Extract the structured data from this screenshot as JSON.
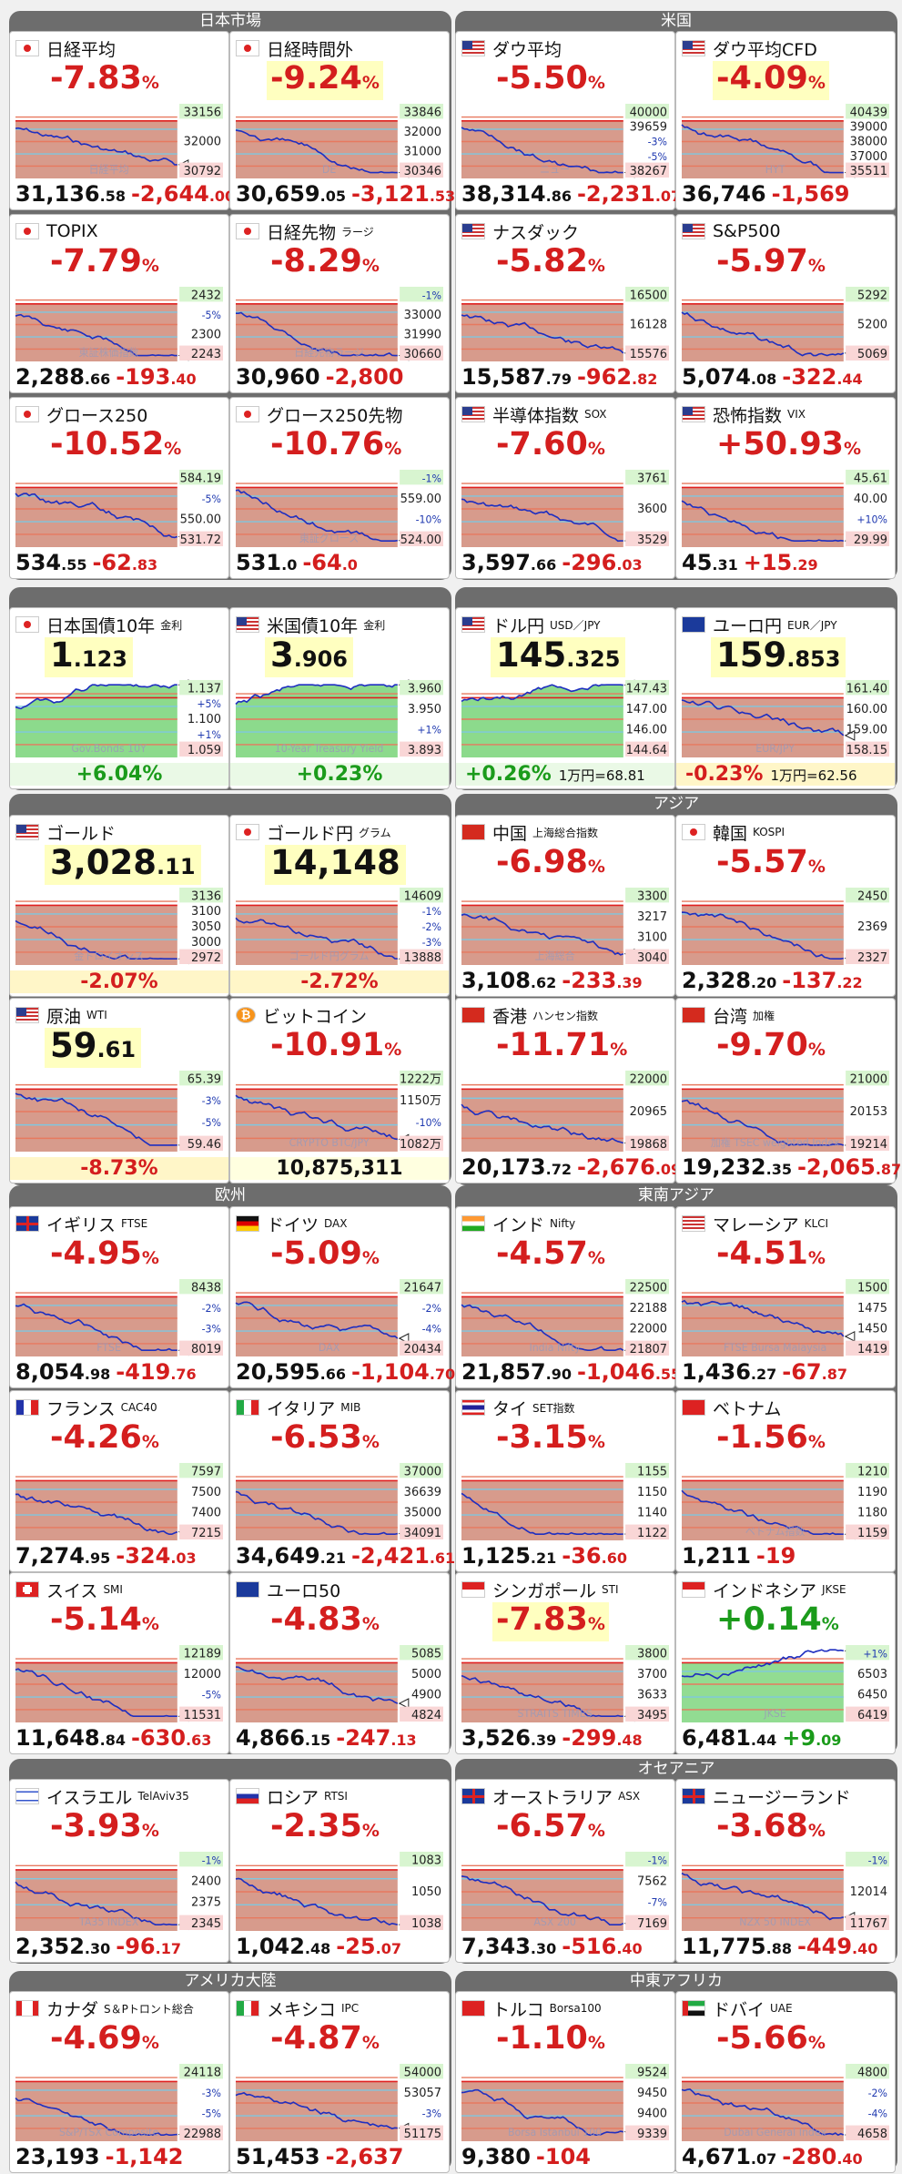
{
  "colors": {
    "down": "#d41e1e",
    "up": "#1b9b1b",
    "section": "#6d6d6d",
    "highlight": "#ffffc0"
  },
  "sections": {
    "nikkei": "日本市場",
    "us": "米国",
    "asia": "アジア",
    "europe": "欧州",
    "sea": "東南アジア",
    "oceania": "オセアニア",
    "americas": "アメリカ大陸",
    "mideast": "中東アフリカ"
  },
  "tiles": [
    {
      "name": "日経平均",
      "flag": "jp",
      "pct": "-7.83",
      "dir": "dn",
      "last": "31,136",
      "lastdec": ".58",
      "chg": "-2,644",
      "chgdec": ".00",
      "ticks": [
        "33156",
        "32000",
        "30792"
      ],
      "wm": "日経平均"
    },
    {
      "name": "日経時間外",
      "flag": "jp",
      "pct": "-9.24",
      "dir": "dn",
      "last": "30,659",
      "lastdec": ".05",
      "chg": "-3,121",
      "chgdec": ".53",
      "ticks": [
        "33846",
        "32000",
        "31000",
        "30346"
      ],
      "wm": "DE"
    },
    {
      "name": "ダウ平均",
      "flag": "us",
      "pct": "-5.50",
      "dir": "dn",
      "last": "38,314",
      "lastdec": ".86",
      "chg": "-2,231",
      "chgdec": ".07",
      "ticks": [
        "40000",
        "39659",
        "-3%",
        "-5%",
        "38267"
      ],
      "wm": "ニュー"
    },
    {
      "name": "ダウ平均CFD",
      "flag": "us",
      "pct": "-4.09",
      "dir": "dn",
      "last": "36,746",
      "lastdec": "",
      "chg": "-1,569",
      "chgdec": "",
      "ticks": [
        "40439",
        "39000",
        "38000",
        "37000",
        "35511"
      ],
      "wm": "HYT"
    },
    {
      "name": "TOPIX",
      "flag": "jp",
      "pct": "-7.79",
      "dir": "dn",
      "last": "2,288",
      "lastdec": ".66",
      "chg": "-193",
      "chgdec": ".40",
      "ticks": [
        "2432",
        "-5%",
        "2300",
        "2243"
      ],
      "wm": "東証株価指数"
    },
    {
      "name": "日経先物",
      "sub": "ラージ",
      "flag": "jp",
      "pct": "-8.29",
      "dir": "dn",
      "last": "30,960",
      "lastdec": "",
      "chg": "-2,800",
      "chgdec": "",
      "ticks": [
        "-1%",
        "33000",
        "31990",
        "30660"
      ],
      "wm": "日経先物ラージ"
    },
    {
      "name": "ナスダック",
      "flag": "us",
      "pct": "-5.82",
      "dir": "dn",
      "last": "15,587",
      "lastdec": ".79",
      "chg": "-962",
      "chgdec": ".82",
      "ticks": [
        "16500",
        "16128",
        "15576"
      ],
      "wm": ""
    },
    {
      "name": "S&P500",
      "flag": "us",
      "pct": "-5.97",
      "dir": "dn",
      "last": "5,074",
      "lastdec": ".08",
      "chg": "-322",
      "chgdec": ".44",
      "ticks": [
        "5292",
        "5200",
        "5069"
      ],
      "wm": ""
    },
    {
      "name": "グロース250",
      "flag": "jp",
      "pct": "-10.52",
      "dir": "dn",
      "last": "534",
      "lastdec": ".55",
      "chg": "-62",
      "chgdec": ".83",
      "ticks": [
        "584.19",
        "-5%",
        "550.00",
        "531.72"
      ],
      "wm": ""
    },
    {
      "name": "グロース250先物",
      "flag": "jp",
      "pct": "-10.76",
      "dir": "dn",
      "last": "531",
      "lastdec": ".0",
      "chg": "-64",
      "chgdec": ".0",
      "ticks": [
        "-1%",
        "559.00",
        "-10%",
        "524.00"
      ],
      "wm": "東証グロース"
    },
    {
      "name": "半導体指数",
      "sub": "SOX",
      "flag": "us",
      "pct": "-7.60",
      "dir": "dn",
      "last": "3,597",
      "lastdec": ".66",
      "chg": "-296",
      "chgdec": ".03",
      "ticks": [
        "3761",
        "3600",
        "3529"
      ],
      "wm": ""
    },
    {
      "name": "恐怖指数",
      "sub": "VIX",
      "flag": "us",
      "pct": "+50.93",
      "dir": "dn",
      "last": "45",
      "lastdec": ".31",
      "chg": "+15",
      "chgdec": ".29",
      "ticks": [
        "45.61",
        "40.00",
        "+10%",
        "29.99"
      ],
      "wm": ""
    },
    {
      "name": "日本国債10年",
      "sub": "金利",
      "flag": "jp",
      "priceI": "1",
      "priceD": ".123",
      "dir": "up",
      "foot": "+6.04%",
      "ticks": [
        "1.137",
        "+5%",
        "1.100",
        "+1%",
        "1.059"
      ],
      "wm": "Gov.Bonds 10Y"
    },
    {
      "name": "米国債10年",
      "sub": "金利",
      "flag": "us",
      "priceI": "3",
      "priceD": ".906",
      "dir": "up",
      "foot": "+0.23%",
      "ticks": [
        "3.960",
        "3.950",
        "+1%",
        "3.893"
      ],
      "wm": "10-Year Treasury Yield"
    },
    {
      "name": "ドル円",
      "sub": "USD／JPY",
      "flag": "us",
      "priceI": "145",
      "priceD": ".325",
      "dir": "up",
      "foot": "+0.26%",
      "foot2": "1万円=68.81",
      "ticks": [
        "147.43",
        "147.00",
        "146.00",
        "144.64"
      ],
      "wm": ""
    },
    {
      "name": "ユーロ円",
      "sub": "EUR／JPY",
      "flag": "eu",
      "priceI": "159",
      "priceD": ".853",
      "dir": "dn",
      "foot": "-0.23%",
      "foot2": "1万円=62.56",
      "ticks": [
        "161.40",
        "160.00",
        "159.00",
        "158.15"
      ],
      "wm": "EUR/JPY"
    },
    {
      "name": "ゴールド",
      "flag": "us",
      "priceI": "3,028",
      "priceD": ".11",
      "dir": "dn",
      "foot": "-2.07%",
      "ticks": [
        "3136",
        "3100",
        "3050",
        "3000",
        "2972"
      ],
      "wm": "金トロイオンス"
    },
    {
      "name": "ゴールド円",
      "sub": "グラム",
      "flag": "jp",
      "priceI": "14,148",
      "priceD": "",
      "dir": "dn",
      "foot": "-2.72%",
      "ticks": [
        "14609",
        "-1%",
        "-2%",
        "-3%",
        "13888"
      ],
      "wm": "ゴールド円グラム"
    },
    {
      "name": "中国",
      "sub": "上海総合指数",
      "flag": "cn",
      "pct": "-6.98",
      "dir": "dn",
      "last": "3,108",
      "lastdec": ".62",
      "chg": "-233",
      "chgdec": ".39",
      "ticks": [
        "3300",
        "3217",
        "3100",
        "3040"
      ],
      "wm": "上海総合"
    },
    {
      "name": "韓国",
      "sub": "KOSPI",
      "flag": "kr",
      "pct": "-5.57",
      "dir": "dn",
      "last": "2,328",
      "lastdec": ".20",
      "chg": "-137",
      "chgdec": ".22",
      "ticks": [
        "2450",
        "2369",
        "2327"
      ],
      "wm": ""
    },
    {
      "name": "原油",
      "sub": "WTI",
      "flag": "us",
      "priceI": "59",
      "priceD": ".61",
      "dir": "dn",
      "foot": "-8.73%",
      "ticks": [
        "65.39",
        "-3%",
        "-5%",
        "59.46"
      ],
      "wm": ""
    },
    {
      "name": "ビットコイン",
      "flag": "btc",
      "pct": "-10.91",
      "dir": "dn",
      "footbig": "10,875,311",
      "ticks": [
        "1222万",
        "1150万",
        "-10%",
        "1082万"
      ],
      "wm": "CRYPTO BTC/JPY"
    },
    {
      "name": "香港",
      "sub": "ハンセン指数",
      "flag": "hk",
      "pct": "-11.71",
      "dir": "dn",
      "last": "20,173",
      "lastdec": ".72",
      "chg": "-2,676",
      "chgdec": ".09",
      "ticks": [
        "22000",
        "20965",
        "19868"
      ],
      "wm": ""
    },
    {
      "name": "台湾",
      "sub": "加権",
      "flag": "tw",
      "pct": "-9.70",
      "dir": "dn",
      "last": "19,232",
      "lastdec": ".35",
      "chg": "-2,065",
      "chgdec": ".87",
      "ticks": [
        "21000",
        "20153",
        "19214"
      ],
      "wm": "加権 TSEC weighted Index"
    },
    {
      "name": "イギリス",
      "sub": "FTSE",
      "flag": "gb",
      "pct": "-4.95",
      "dir": "dn",
      "last": "8,054",
      "lastdec": ".98",
      "chg": "-419",
      "chgdec": ".76",
      "ticks": [
        "8438",
        "-2%",
        "-3%",
        "8019"
      ],
      "wm": "FTSE"
    },
    {
      "name": "ドイツ",
      "sub": "DAX",
      "flag": "de",
      "pct": "-5.09",
      "dir": "dn",
      "last": "20,595",
      "lastdec": ".66",
      "chg": "-1,104",
      "chgdec": ".70",
      "ticks": [
        "21647",
        "-2%",
        "-4%",
        "20434"
      ],
      "wm": "DAX"
    },
    {
      "name": "インド",
      "sub": "Nifty",
      "flag": "in",
      "pct": "-4.57",
      "dir": "dn",
      "last": "21,857",
      "lastdec": ".90",
      "chg": "-1,046",
      "chgdec": ".55",
      "ticks": [
        "22500",
        "22188",
        "22000",
        "21807"
      ],
      "wm": "India Nifty"
    },
    {
      "name": "マレーシア",
      "sub": "KLCI",
      "flag": "my",
      "pct": "-4.51",
      "dir": "dn",
      "last": "1,436",
      "lastdec": ".27",
      "chg": "-67",
      "chgdec": ".87",
      "ticks": [
        "1500",
        "1475",
        "1450",
        "1419"
      ],
      "wm": "FTSE Bursa Malaysia"
    },
    {
      "name": "フランス",
      "sub": "CAC40",
      "flag": "fr",
      "pct": "-4.26",
      "dir": "dn",
      "last": "7,274",
      "lastdec": ".95",
      "chg": "-324",
      "chgdec": ".03",
      "ticks": [
        "7597",
        "7500",
        "7400",
        "7215"
      ],
      "wm": ""
    },
    {
      "name": "イタリア",
      "sub": "MIB",
      "flag": "it",
      "pct": "-6.53",
      "dir": "dn",
      "last": "34,649",
      "lastdec": ".21",
      "chg": "-2,421",
      "chgdec": ".61",
      "ticks": [
        "37000",
        "36639",
        "35000",
        "34091"
      ],
      "wm": ""
    },
    {
      "name": "タイ",
      "sub": "SET指数",
      "flag": "th",
      "pct": "-3.15",
      "dir": "dn",
      "last": "1,125",
      "lastdec": ".21",
      "chg": "-36",
      "chgdec": ".60",
      "ticks": [
        "1155",
        "1150",
        "1140",
        "1122"
      ],
      "wm": ""
    },
    {
      "name": "ベトナム",
      "flag": "vn",
      "pct": "-1.56",
      "dir": "dn",
      "last": "1,211",
      "lastdec": "",
      "chg": "-19",
      "chgdec": "",
      "ticks": [
        "1210",
        "1190",
        "1180",
        "1159"
      ],
      "wm": "ベトナム指数"
    },
    {
      "name": "スイス",
      "sub": "SMI",
      "flag": "ch",
      "pct": "-5.14",
      "dir": "dn",
      "last": "11,648",
      "lastdec": ".84",
      "chg": "-630",
      "chgdec": ".63",
      "ticks": [
        "12189",
        "12000",
        "-5%",
        "11531"
      ],
      "wm": ""
    },
    {
      "name": "ユーロ50",
      "flag": "eu",
      "pct": "-4.83",
      "dir": "dn",
      "last": "4,866",
      "lastdec": ".15",
      "chg": "-247",
      "chgdec": ".13",
      "ticks": [
        "5085",
        "5000",
        "4900",
        "4824"
      ],
      "wm": ""
    },
    {
      "name": "シンガポール",
      "sub": "STI",
      "flag": "sg",
      "pct": "-7.83",
      "dir": "dn",
      "last": "3,526",
      "lastdec": ".39",
      "chg": "-299",
      "chgdec": ".48",
      "ticks": [
        "3800",
        "3700",
        "3633",
        "3495"
      ],
      "wm": "STRAITS TIMES"
    },
    {
      "name": "インドネシア",
      "sub": "JKSE",
      "flag": "id",
      "pct": "+0.14",
      "dir": "up",
      "last": "6,481",
      "lastdec": ".44",
      "chg": "+9",
      "chgdec": ".09",
      "ticks": [
        "+1%",
        "6503",
        "6450",
        "6419"
      ],
      "wm": "JKSE"
    },
    {
      "name": "イスラエル",
      "sub": "TelAviv35",
      "flag": "il",
      "pct": "-3.93",
      "dir": "dn",
      "last": "2,352",
      "lastdec": ".30",
      "chg": "-96",
      "chgdec": ".17",
      "ticks": [
        "-1%",
        "2400",
        "2375",
        "2345"
      ],
      "wm": "TA35 INDEX"
    },
    {
      "name": "ロシア",
      "sub": "RTSI",
      "flag": "ru",
      "pct": "-2.35",
      "dir": "dn",
      "last": "1,042",
      "lastdec": ".48",
      "chg": "-25",
      "chgdec": ".07",
      "ticks": [
        "1083",
        "1050",
        "1038"
      ],
      "wm": ""
    },
    {
      "name": "オーストラリア",
      "sub": "ASX",
      "flag": "au",
      "pct": "-6.57",
      "dir": "dn",
      "last": "7,343",
      "lastdec": ".30",
      "chg": "-516",
      "chgdec": ".40",
      "ticks": [
        "-1%",
        "7562",
        "-7%",
        "7169"
      ],
      "wm": "ASX 200"
    },
    {
      "name": "ニュージーランド",
      "flag": "nz",
      "pct": "-3.68",
      "dir": "dn",
      "last": "11,775",
      "lastdec": ".88",
      "chg": "-449",
      "chgdec": ".40",
      "ticks": [
        "-1%",
        "12014",
        "11767"
      ],
      "wm": "NZX 50 INDEX"
    },
    {
      "name": "カナダ",
      "sub": "S＆Pトロント総合",
      "flag": "ca",
      "pct": "-4.69",
      "dir": "dn",
      "last": "23,193",
      "lastdec": "",
      "chg": "-1,142",
      "chgdec": "",
      "ticks": [
        "24118",
        "-3%",
        "-5%",
        "22988"
      ],
      "wm": "S&P/TSX Composite"
    },
    {
      "name": "メキシコ",
      "sub": "IPC",
      "flag": "mx",
      "pct": "-4.87",
      "dir": "dn",
      "last": "51,453",
      "lastdec": "",
      "chg": "-2,637",
      "chgdec": "",
      "ticks": [
        "54000",
        "53057",
        "-3%",
        "51175"
      ],
      "wm": ""
    },
    {
      "name": "トルコ",
      "sub": "Borsa100",
      "flag": "tr",
      "pct": "-1.10",
      "dir": "dn",
      "last": "9,380",
      "lastdec": "",
      "chg": "-104",
      "chgdec": "",
      "ticks": [
        "9524",
        "9450",
        "9400",
        "9339"
      ],
      "wm": "Borsa Istanbul 100"
    },
    {
      "name": "ドバイ",
      "sub": "UAE",
      "flag": "ae",
      "pct": "-5.66",
      "dir": "dn",
      "last": "4,671",
      "lastdec": ".07",
      "chg": "-280",
      "chgdec": ".40",
      "ticks": [
        "4800",
        "-2%",
        "-4%",
        "4658"
      ],
      "wm": "Dubai General Index"
    }
  ]
}
